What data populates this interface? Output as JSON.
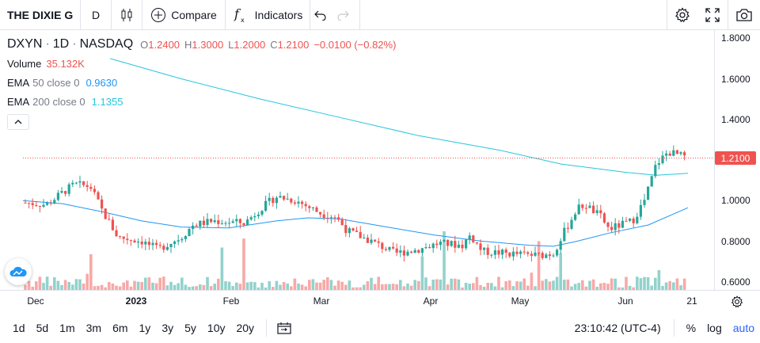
{
  "toolbar": {
    "symbol": "THE DIXIE G",
    "interval": "D",
    "compare_label": "Compare",
    "indicators_label": "Indicators"
  },
  "legend": {
    "ticker": "DXYN",
    "interval": "1D",
    "exchange": "NASDAQ",
    "open_label": "O",
    "open": "1.2400",
    "high_label": "H",
    "high": "1.3000",
    "low_label": "L",
    "low": "1.2000",
    "close_label": "C",
    "close": "1.2100",
    "change": "−0.0100 (−0.82%)",
    "volume_label": "Volume",
    "volume": "35.132K",
    "ema50_label": "EMA",
    "ema50_params": "50 close 0",
    "ema50_value": "0.9630",
    "ema200_label": "EMA",
    "ema200_params": "200 close 0",
    "ema200_value": "1.1355"
  },
  "price_axis": {
    "ticks": [
      "1.8000",
      "1.6000",
      "1.4000",
      "1.2000",
      "1.0000",
      "0.8000",
      "0.6000"
    ],
    "last_price": "1.2100"
  },
  "time_axis": {
    "labels": [
      "Dec",
      "2023",
      "Feb",
      "Mar",
      "Apr",
      "May",
      "Jun",
      "21"
    ]
  },
  "bottombar": {
    "ranges": [
      "1d",
      "5d",
      "1m",
      "3m",
      "6m",
      "1y",
      "3y",
      "5y",
      "10y",
      "20y"
    ],
    "time": "23:10:42 (UTC-4)",
    "percent": "%",
    "log": "log",
    "auto": "auto"
  },
  "colors": {
    "up": "#26a69a",
    "down": "#ef5350",
    "ema50": "#2196f3",
    "ema200": "#26c6da"
  },
  "chart_data": {
    "type": "candlestick",
    "ylim": [
      0.56,
      1.84
    ],
    "ema50_start": 1.0,
    "ema200_start": 1.7,
    "last_price": 1.21,
    "series_note_omitted": true
  }
}
